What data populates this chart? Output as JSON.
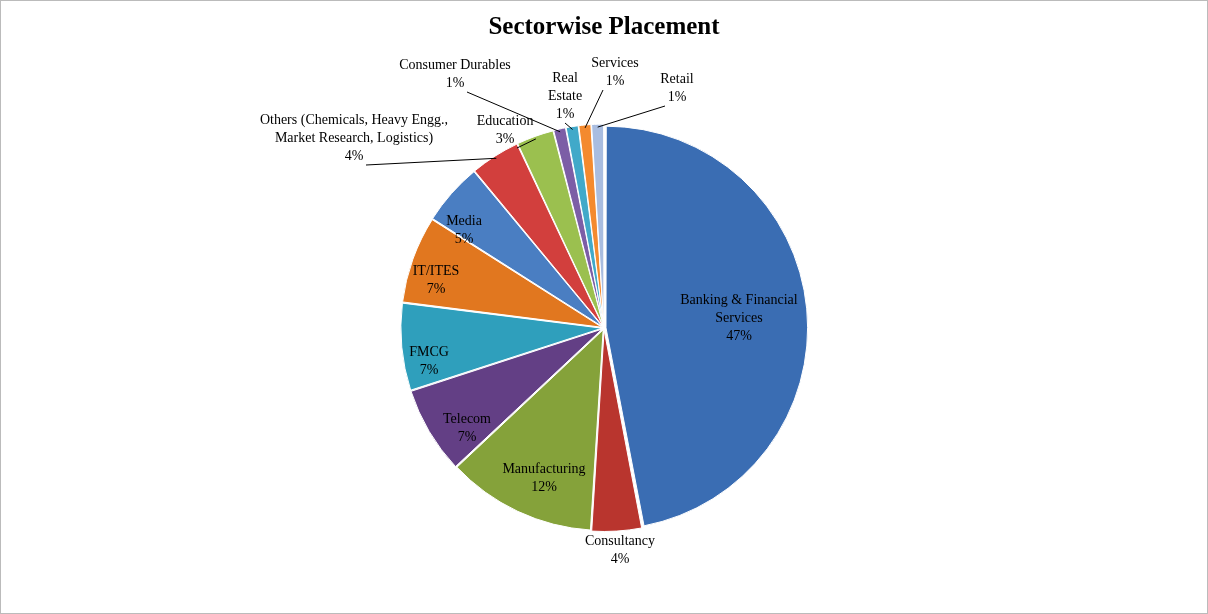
{
  "chart_data": {
    "type": "pie",
    "title": "Sectorwise Placement",
    "categories": [
      "Banking & Financial Services",
      "Consultancy",
      "Manufacturing",
      "Telecom",
      "FMCG",
      "IT/ITES",
      "Media",
      "Others (Chemicals,  Heavy Engg., Market Research, Logistics)",
      "Education",
      "Consumer Durables",
      "Real Estate",
      "Services",
      "Retail"
    ],
    "values": [
      47,
      4,
      12,
      7,
      7,
      7,
      5,
      4,
      3,
      1,
      1,
      1,
      1
    ],
    "value_labels": [
      "47%",
      "4%",
      "12%",
      "7%",
      "7%",
      "7%",
      "5%",
      "4%",
      "3%",
      "1%",
      "1%",
      "1%",
      "1%"
    ],
    "colors": [
      "#3a6db3",
      "#b9352e",
      "#85a23a",
      "#633f85",
      "#2f9fbc",
      "#e1771f",
      "#4a7ec2",
      "#d23f3d",
      "#9bc04f",
      "#7c5ea6",
      "#41a9c9",
      "#f48a2e",
      "#a9bde0"
    ],
    "legend": false
  }
}
